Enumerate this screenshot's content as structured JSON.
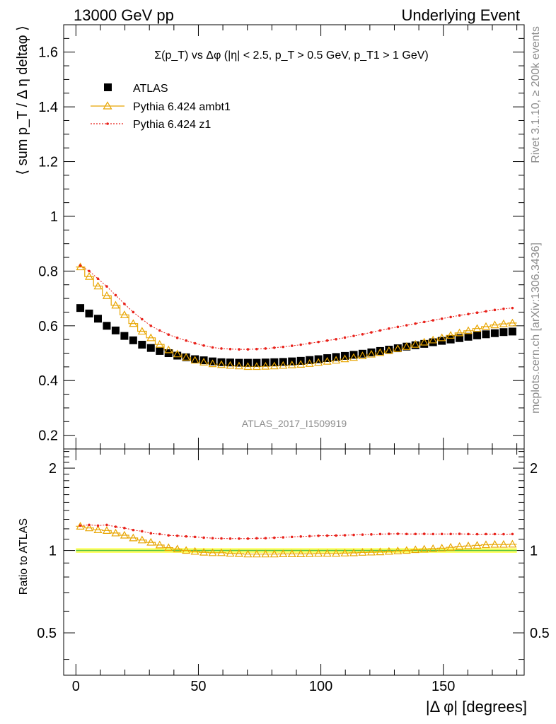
{
  "header": {
    "left": "13000 GeV pp",
    "right": "Underlying Event"
  },
  "side_labels": {
    "rivet": "Rivet 3.1.10, ≥ 200k events",
    "mcplots": "mcplots.cern.ch [arXiv:1306.3436]"
  },
  "watermark": "ATLAS_2017_I1509919",
  "chart_data": [
    {
      "type": "scatter",
      "title": "Σ(p_T) vs Δφ (|η| < 2.5, p_T > 0.5 GeV, p_T1 > 1 GeV)",
      "ylabel": "⟨ sum p_T / Δ η deltaφ ⟩",
      "xlabel": "|Δ φ| [degrees]",
      "xlim": [
        -5,
        183
      ],
      "ylim": [
        0.15,
        1.7
      ],
      "yticks": [
        "0.2",
        "0.4",
        "0.6",
        "0.8",
        "1",
        "1.2",
        "1.4",
        "1.6"
      ],
      "legend_position": "top-left",
      "x": [
        1.8,
        5.4,
        9.0,
        12.6,
        16.2,
        19.8,
        23.4,
        27.0,
        30.6,
        34.2,
        37.8,
        41.4,
        45.0,
        48.6,
        52.2,
        55.8,
        59.4,
        63.0,
        66.6,
        70.2,
        73.8,
        77.4,
        81.0,
        84.6,
        88.2,
        91.8,
        95.4,
        99.0,
        102.6,
        106.2,
        109.8,
        113.4,
        117.0,
        120.6,
        124.2,
        127.8,
        131.4,
        135.0,
        138.6,
        142.2,
        145.8,
        149.4,
        153.0,
        156.6,
        160.2,
        163.8,
        167.4,
        171.0,
        174.6,
        178.2
      ],
      "series": [
        {
          "name": "ATLAS",
          "color": "#000000",
          "marker": "square",
          "values": [
            0.665,
            0.645,
            0.626,
            0.6,
            0.583,
            0.563,
            0.547,
            0.531,
            0.519,
            0.508,
            0.5,
            0.491,
            0.485,
            0.478,
            0.474,
            0.47,
            0.467,
            0.466,
            0.465,
            0.465,
            0.465,
            0.466,
            0.467,
            0.468,
            0.47,
            0.472,
            0.475,
            0.478,
            0.482,
            0.486,
            0.49,
            0.494,
            0.498,
            0.503,
            0.508,
            0.513,
            0.518,
            0.524,
            0.529,
            0.534,
            0.54,
            0.545,
            0.55,
            0.555,
            0.56,
            0.565,
            0.569,
            0.573,
            0.577,
            0.579
          ]
        },
        {
          "name": "Pythia 6.424 ambt1",
          "color": "#e8a500",
          "marker": "triangle",
          "values": [
            0.815,
            0.78,
            0.745,
            0.71,
            0.675,
            0.64,
            0.608,
            0.58,
            0.556,
            0.532,
            0.512,
            0.497,
            0.485,
            0.474,
            0.467,
            0.461,
            0.458,
            0.455,
            0.453,
            0.451,
            0.451,
            0.452,
            0.453,
            0.455,
            0.457,
            0.459,
            0.462,
            0.466,
            0.47,
            0.474,
            0.479,
            0.484,
            0.49,
            0.496,
            0.502,
            0.509,
            0.516,
            0.524,
            0.532,
            0.54,
            0.548,
            0.556,
            0.565,
            0.574,
            0.582,
            0.59,
            0.597,
            0.603,
            0.607,
            0.61
          ]
        },
        {
          "name": "Pythia 6.424 z1",
          "color": "#e8211a",
          "marker": "dot",
          "values": [
            0.82,
            0.8,
            0.772,
            0.744,
            0.712,
            0.68,
            0.65,
            0.624,
            0.6,
            0.583,
            0.568,
            0.556,
            0.546,
            0.536,
            0.528,
            0.521,
            0.517,
            0.515,
            0.514,
            0.514,
            0.515,
            0.517,
            0.52,
            0.523,
            0.527,
            0.531,
            0.536,
            0.541,
            0.546,
            0.551,
            0.557,
            0.563,
            0.569,
            0.576,
            0.583,
            0.59,
            0.596,
            0.602,
            0.608,
            0.614,
            0.62,
            0.626,
            0.632,
            0.638,
            0.643,
            0.648,
            0.653,
            0.658,
            0.662,
            0.665
          ]
        }
      ]
    },
    {
      "type": "line",
      "ylabel": "Ratio to ATLAS",
      "xlabel": "|Δ φ| [degrees]",
      "xlim": [
        -5,
        183
      ],
      "ylim": [
        0.35,
        2.35
      ],
      "yscale": "log",
      "yticks": [
        "0.5",
        "1",
        "2"
      ],
      "xticks": [
        "0",
        "50",
        "100",
        "150"
      ],
      "reference_band": {
        "color": "#ffff66",
        "line": "#58c341",
        "value": 1.0
      },
      "series": [
        {
          "name": "Pythia 6.424 ambt1",
          "color": "#e8a500",
          "values": [
            1.226,
            1.209,
            1.19,
            1.183,
            1.158,
            1.137,
            1.111,
            1.092,
            1.071,
            1.047,
            1.024,
            1.012,
            1.0,
            0.992,
            0.985,
            0.981,
            0.981,
            0.976,
            0.974,
            0.97,
            0.97,
            0.97,
            0.97,
            0.972,
            0.972,
            0.972,
            0.973,
            0.975,
            0.975,
            0.975,
            0.978,
            0.98,
            0.984,
            0.986,
            0.988,
            0.992,
            0.996,
            1.0,
            1.006,
            1.011,
            1.015,
            1.02,
            1.027,
            1.034,
            1.039,
            1.044,
            1.049,
            1.052,
            1.052,
            1.054
          ]
        },
        {
          "name": "Pythia 6.424 z1",
          "color": "#e8211a",
          "values": [
            1.233,
            1.24,
            1.233,
            1.24,
            1.221,
            1.208,
            1.188,
            1.175,
            1.156,
            1.148,
            1.136,
            1.132,
            1.126,
            1.121,
            1.114,
            1.109,
            1.107,
            1.105,
            1.105,
            1.105,
            1.108,
            1.109,
            1.113,
            1.117,
            1.121,
            1.125,
            1.128,
            1.132,
            1.133,
            1.134,
            1.137,
            1.14,
            1.143,
            1.145,
            1.148,
            1.15,
            1.151,
            1.149,
            1.149,
            1.15,
            1.148,
            1.149,
            1.149,
            1.15,
            1.148,
            1.147,
            1.148,
            1.148,
            1.147,
            1.148
          ]
        }
      ]
    }
  ]
}
